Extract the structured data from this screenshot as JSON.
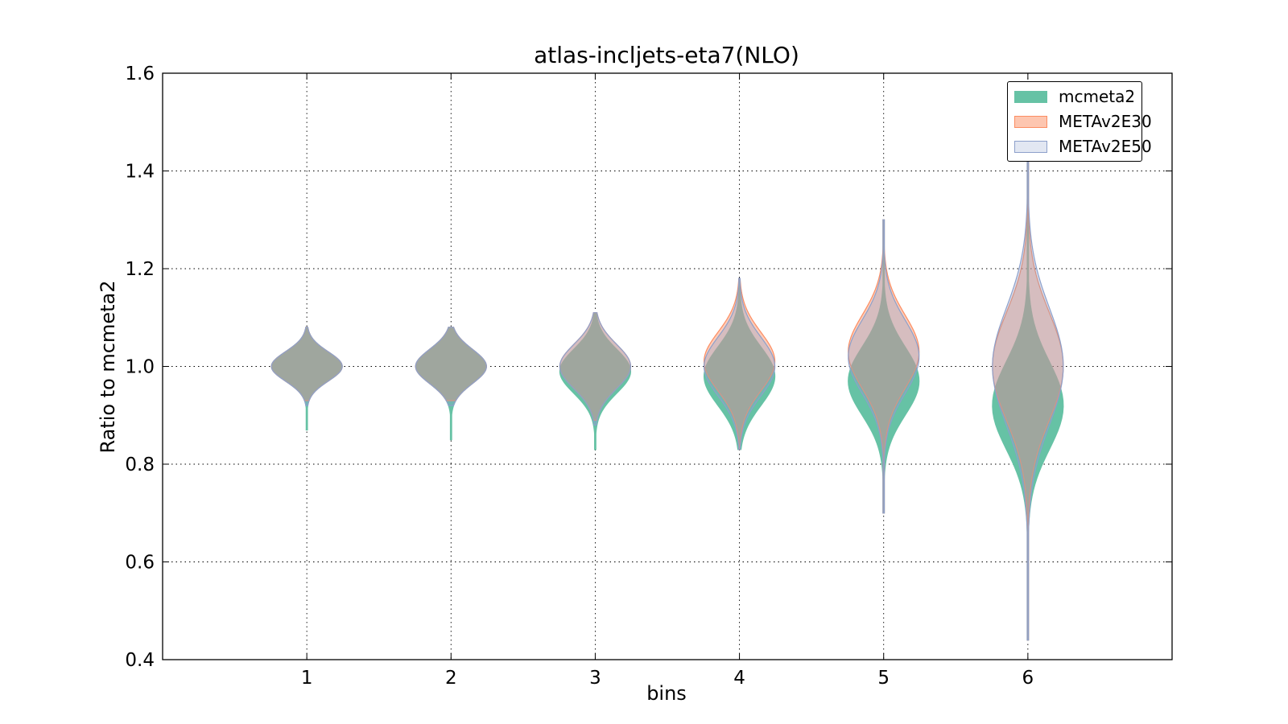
{
  "chart_data": {
    "type": "violin",
    "title": "atlas-incljets-eta7(NLO)",
    "xlabel": "bins",
    "ylabel": "Ratio to mcmeta2",
    "categories": [
      "1",
      "2",
      "3",
      "4",
      "5",
      "6"
    ],
    "x": [
      1,
      2,
      3,
      4,
      5,
      6
    ],
    "xlim": [
      0,
      7
    ],
    "ylim": [
      0.4,
      1.6
    ],
    "yticks": [
      "0.4",
      "0.6",
      "0.8",
      "1.0",
      "1.2",
      "1.4",
      "1.6"
    ],
    "grid": true,
    "legend_position": "upper-right",
    "series": [
      {
        "name": "mcmeta2",
        "color": "#66c2a5",
        "violins": [
          {
            "x": 1,
            "min": 0.87,
            "max": 1.08,
            "peak": 1.0,
            "spread": 0.03
          },
          {
            "x": 2,
            "min": 0.85,
            "max": 1.08,
            "peak": 1.0,
            "spread": 0.035
          },
          {
            "x": 3,
            "min": 0.83,
            "max": 1.11,
            "peak": 0.99,
            "spread": 0.045
          },
          {
            "x": 4,
            "min": 0.83,
            "max": 1.18,
            "peak": 0.98,
            "spread": 0.06
          },
          {
            "x": 5,
            "min": 0.7,
            "max": 1.3,
            "peak": 0.97,
            "spread": 0.07
          },
          {
            "x": 6,
            "min": 0.44,
            "max": 1.42,
            "peak": 0.92,
            "spread": 0.09
          }
        ]
      },
      {
        "name": "METAv2E30",
        "color": "#fc8d62",
        "violins": [
          {
            "x": 1,
            "min": 0.93,
            "max": 1.08,
            "peak": 1.0,
            "spread": 0.03
          },
          {
            "x": 2,
            "min": 0.93,
            "max": 1.08,
            "peak": 1.0,
            "spread": 0.035
          },
          {
            "x": 3,
            "min": 0.89,
            "max": 1.11,
            "peak": 1.0,
            "spread": 0.045
          },
          {
            "x": 4,
            "min": 0.83,
            "max": 1.18,
            "peak": 1.01,
            "spread": 0.06
          },
          {
            "x": 5,
            "min": 0.7,
            "max": 1.3,
            "peak": 1.03,
            "spread": 0.075
          },
          {
            "x": 6,
            "min": 0.44,
            "max": 1.42,
            "peak": 1.0,
            "spread": 0.11
          }
        ]
      },
      {
        "name": "METAv2E50",
        "color": "#8da0cb",
        "violins": [
          {
            "x": 1,
            "min": 0.92,
            "max": 1.08,
            "peak": 1.0,
            "spread": 0.03
          },
          {
            "x": 2,
            "min": 0.92,
            "max": 1.08,
            "peak": 1.0,
            "spread": 0.035
          },
          {
            "x": 3,
            "min": 0.88,
            "max": 1.11,
            "peak": 1.0,
            "spread": 0.045
          },
          {
            "x": 4,
            "min": 0.83,
            "max": 1.18,
            "peak": 1.0,
            "spread": 0.06
          },
          {
            "x": 5,
            "min": 0.7,
            "max": 1.3,
            "peak": 1.02,
            "spread": 0.075
          },
          {
            "x": 6,
            "min": 0.44,
            "max": 1.42,
            "peak": 1.0,
            "spread": 0.12
          }
        ]
      }
    ]
  }
}
